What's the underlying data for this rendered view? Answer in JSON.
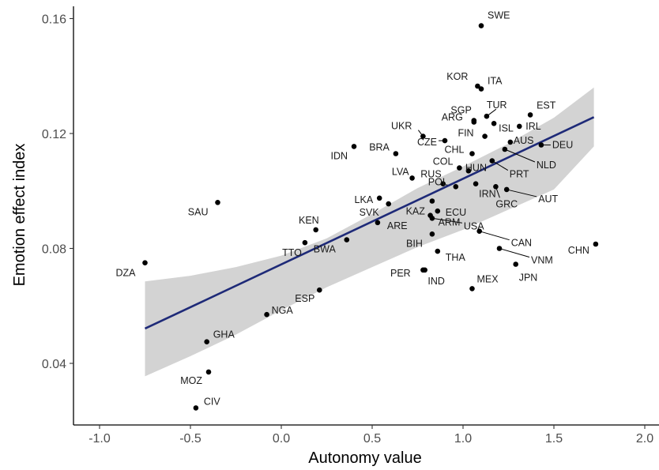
{
  "chart_data": {
    "type": "scatter",
    "xlabel": "Autonomy value",
    "ylabel": "Emotion effect index",
    "xlim": [
      -1.1,
      2.05
    ],
    "ylim": [
      0.018,
      0.163
    ],
    "x_ticks": [
      -1.0,
      -0.5,
      0.0,
      0.5,
      1.0,
      1.5,
      2.0
    ],
    "x_tick_labels": [
      "-1.0",
      "-0.5",
      "0.0",
      "0.5",
      "1.0",
      "1.5",
      "2.0"
    ],
    "y_ticks": [
      0.04,
      0.08,
      0.12,
      0.16
    ],
    "y_tick_labels": [
      "0.04",
      "0.08",
      "0.12",
      "0.16"
    ],
    "grid": false,
    "fit_line": {
      "x": [
        -0.75,
        1.72
      ],
      "y": [
        0.0521,
        0.1257
      ],
      "color": "#1e2a78"
    },
    "confidence_band": {
      "x": [
        -0.75,
        -0.5,
        -0.25,
        0.0,
        0.25,
        0.5,
        0.75,
        1.0,
        1.25,
        1.5,
        1.72
      ],
      "upper": [
        0.0685,
        0.0705,
        0.0735,
        0.0775,
        0.0835,
        0.092,
        0.101,
        0.1085,
        0.1165,
        0.1255,
        0.136
      ],
      "lower": [
        0.0355,
        0.0425,
        0.05,
        0.0585,
        0.0665,
        0.0735,
        0.0805,
        0.0865,
        0.0935,
        0.1005,
        0.1155
      ],
      "color": "#d3d3d3"
    },
    "points": [
      {
        "label": "SWE",
        "x": 1.1,
        "y": 0.1575
      },
      {
        "label": "KOR",
        "x": 1.08,
        "y": 0.1365
      },
      {
        "label": "ITA",
        "x": 1.1,
        "y": 0.1355
      },
      {
        "label": "SGP",
        "x": 1.06,
        "y": 0.1245
      },
      {
        "label": "TUR",
        "x": 1.13,
        "y": 0.126
      },
      {
        "label": "EST",
        "x": 1.37,
        "y": 0.1265
      },
      {
        "label": "ISL",
        "x": 1.17,
        "y": 0.1235
      },
      {
        "label": "IRL",
        "x": 1.31,
        "y": 0.1225
      },
      {
        "label": "UKR",
        "x": 0.78,
        "y": 0.119
      },
      {
        "label": "ARG",
        "x": 1.06,
        "y": 0.124
      },
      {
        "label": "CZE",
        "x": 0.9,
        "y": 0.1175
      },
      {
        "label": "FIN",
        "x": 1.12,
        "y": 0.119
      },
      {
        "label": "AUS",
        "x": 1.26,
        "y": 0.117
      },
      {
        "label": "DEU",
        "x": 1.43,
        "y": 0.116
      },
      {
        "label": "NLD",
        "x": 1.23,
        "y": 0.1145
      },
      {
        "label": "BRA",
        "x": 0.63,
        "y": 0.113
      },
      {
        "label": "IDN",
        "x": 0.4,
        "y": 0.1155
      },
      {
        "label": "CHL",
        "x": 1.05,
        "y": 0.113
      },
      {
        "label": "LVA",
        "x": 0.72,
        "y": 0.1045
      },
      {
        "label": "COL",
        "x": 0.98,
        "y": 0.108
      },
      {
        "label": "HUN",
        "x": 1.03,
        "y": 0.107
      },
      {
        "label": "PRT",
        "x": 1.16,
        "y": 0.1105
      },
      {
        "label": "LKA",
        "x": 0.54,
        "y": 0.0975
      },
      {
        "label": "RUS",
        "x": 0.89,
        "y": 0.1025
      },
      {
        "label": "POL",
        "x": 0.96,
        "y": 0.1015
      },
      {
        "label": "IRN",
        "x": 1.07,
        "y": 0.1025
      },
      {
        "label": "GRC",
        "x": 1.18,
        "y": 0.1015
      },
      {
        "label": "AUT",
        "x": 1.24,
        "y": 0.1005
      },
      {
        "label": "SAU",
        "x": -0.35,
        "y": 0.096
      },
      {
        "label": "KAZ",
        "x": 0.83,
        "y": 0.0965
      },
      {
        "label": "ECU",
        "x": 0.86,
        "y": 0.093
      },
      {
        "label": "SVK",
        "x": 0.59,
        "y": 0.0955
      },
      {
        "label": "USA",
        "x": 0.83,
        "y": 0.0905
      },
      {
        "label": "KEN",
        "x": 0.19,
        "y": 0.0865
      },
      {
        "label": "ARE",
        "x": 0.53,
        "y": 0.089
      },
      {
        "label": "ARM",
        "x": 0.82,
        "y": 0.0915
      },
      {
        "label": "BWA",
        "x": 0.36,
        "y": 0.083
      },
      {
        "label": "TTO",
        "x": 0.13,
        "y": 0.082
      },
      {
        "label": "BIH",
        "x": 0.83,
        "y": 0.085
      },
      {
        "label": "CAN",
        "x": 1.09,
        "y": 0.086
      },
      {
        "label": "THA",
        "x": 0.86,
        "y": 0.079
      },
      {
        "label": "CHN",
        "x": 1.73,
        "y": 0.0815
      },
      {
        "label": "VNM",
        "x": 1.2,
        "y": 0.08
      },
      {
        "label": "IND",
        "x": 0.78,
        "y": 0.0725
      },
      {
        "label": "JPN",
        "x": 1.29,
        "y": 0.0745
      },
      {
        "label": "DZA",
        "x": -0.75,
        "y": 0.075
      },
      {
        "label": "PER",
        "x": 0.79,
        "y": 0.0725
      },
      {
        "label": "MEX",
        "x": 1.05,
        "y": 0.066
      },
      {
        "label": "ESP",
        "x": 0.21,
        "y": 0.0655
      },
      {
        "label": "NGA",
        "x": -0.08,
        "y": 0.057
      },
      {
        "label": "GHA",
        "x": -0.41,
        "y": 0.0475
      },
      {
        "label": "MOZ",
        "x": -0.4,
        "y": 0.037
      },
      {
        "label": "CIV",
        "x": -0.47,
        "y": 0.0245
      }
    ]
  }
}
